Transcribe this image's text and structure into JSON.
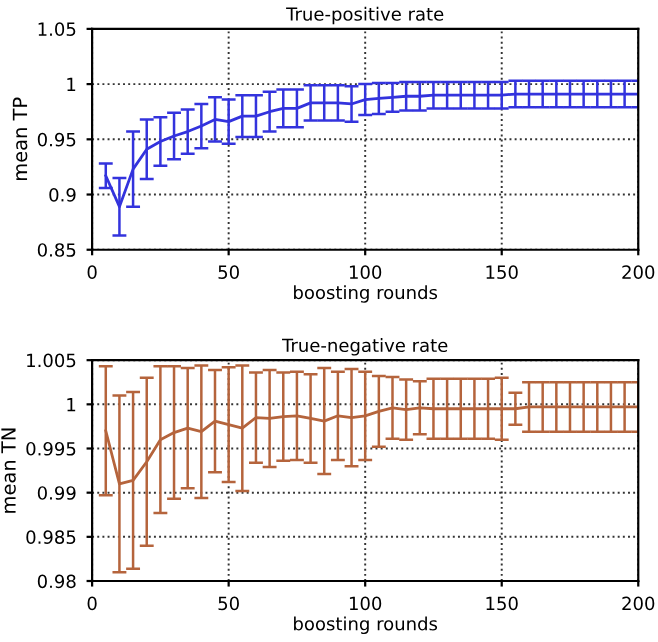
{
  "chart_data": [
    {
      "type": "line",
      "title": "True-positive rate",
      "xlabel": "boosting rounds",
      "ylabel": "mean TP",
      "xlim": [
        0,
        200
      ],
      "xticks": [
        0,
        50,
        100,
        150,
        200
      ],
      "ylim": [
        0.85,
        1.05
      ],
      "yticks": [
        0.85,
        0.9,
        0.95,
        1,
        1.05
      ],
      "grid": true,
      "line_style": "solid",
      "marker": "none",
      "x": [
        5,
        10,
        15,
        20,
        25,
        30,
        35,
        40,
        45,
        50,
        55,
        60,
        65,
        70,
        75,
        80,
        85,
        90,
        95,
        100,
        105,
        110,
        115,
        120,
        125,
        130,
        135,
        140,
        145,
        150,
        155,
        160,
        165,
        170,
        175,
        180,
        185,
        190,
        195,
        200
      ],
      "series": [
        {
          "color": "#3333dd",
          "values": [
            0.917,
            0.889,
            0.923,
            0.941,
            0.948,
            0.953,
            0.957,
            0.962,
            0.968,
            0.966,
            0.971,
            0.971,
            0.975,
            0.978,
            0.978,
            0.983,
            0.983,
            0.983,
            0.982,
            0.986,
            0.987,
            0.988,
            0.989,
            0.989,
            0.99,
            0.99,
            0.99,
            0.99,
            0.99,
            0.99,
            0.991,
            0.991,
            0.991,
            0.991,
            0.991,
            0.991,
            0.991,
            0.991,
            0.991,
            0.991
          ],
          "errors": [
            0.011,
            0.026,
            0.034,
            0.027,
            0.022,
            0.021,
            0.02,
            0.02,
            0.02,
            0.02,
            0.019,
            0.019,
            0.018,
            0.017,
            0.017,
            0.016,
            0.016,
            0.016,
            0.016,
            0.014,
            0.014,
            0.013,
            0.013,
            0.013,
            0.012,
            0.012,
            0.012,
            0.012,
            0.012,
            0.012,
            0.012,
            0.012,
            0.012,
            0.012,
            0.012,
            0.012,
            0.012,
            0.012,
            0.012,
            0.012
          ]
        }
      ]
    },
    {
      "type": "line",
      "title": "True-negative rate",
      "xlabel": "boosting rounds",
      "ylabel": "mean TN",
      "xlim": [
        0,
        200
      ],
      "xticks": [
        0,
        50,
        100,
        150,
        200
      ],
      "ylim": [
        0.98,
        1.005
      ],
      "yticks": [
        0.98,
        0.985,
        0.99,
        0.995,
        1,
        1.005
      ],
      "grid": true,
      "line_style": "solid",
      "marker": "none",
      "x": [
        5,
        10,
        15,
        20,
        25,
        30,
        35,
        40,
        45,
        50,
        55,
        60,
        65,
        70,
        75,
        80,
        85,
        90,
        95,
        100,
        105,
        110,
        115,
        120,
        125,
        130,
        135,
        140,
        145,
        150,
        155,
        160,
        165,
        170,
        175,
        180,
        185,
        190,
        195,
        200
      ],
      "series": [
        {
          "color": "#b5643c",
          "values": [
            0.997,
            0.991,
            0.9914,
            0.9935,
            0.996,
            0.9968,
            0.9973,
            0.9969,
            0.9981,
            0.9977,
            0.9973,
            0.9985,
            0.9984,
            0.9986,
            0.9987,
            0.9984,
            0.9981,
            0.9987,
            0.9985,
            0.9987,
            0.9992,
            0.9996,
            0.9994,
            0.9996,
            0.9995,
            0.9995,
            0.9995,
            0.9995,
            0.9995,
            0.9995,
            0.9995,
            0.9997,
            0.9997,
            0.9997,
            0.9997,
            0.9997,
            0.9997,
            0.9997,
            0.9997,
            0.9997
          ],
          "errors": [
            0.0073,
            0.01,
            0.01,
            0.0095,
            0.0083,
            0.0075,
            0.0068,
            0.0075,
            0.0058,
            0.0065,
            0.0071,
            0.0051,
            0.0055,
            0.005,
            0.005,
            0.005,
            0.006,
            0.005,
            0.0055,
            0.005,
            0.004,
            0.0035,
            0.0034,
            0.003,
            0.0034,
            0.0034,
            0.0034,
            0.0034,
            0.0034,
            0.0035,
            0.0018,
            0.0028,
            0.0028,
            0.0028,
            0.0028,
            0.0028,
            0.0028,
            0.0028,
            0.0028,
            0.0028
          ]
        }
      ]
    }
  ]
}
